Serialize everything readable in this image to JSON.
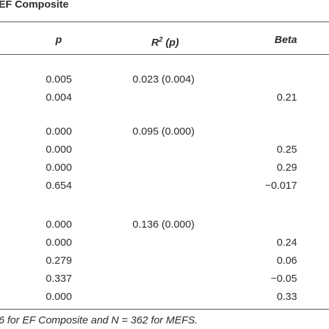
{
  "title": "EF Composite",
  "header": {
    "p": "p",
    "r2": {
      "base": "R",
      "sup": "2",
      "rest": " (p)"
    },
    "beta": "Beta"
  },
  "groups": [
    {
      "rows": [
        {
          "p": "0.005",
          "r2": "0.023 (0.004)",
          "beta": null
        },
        {
          "p": "0.004",
          "r2": null,
          "beta": "0.21"
        }
      ]
    },
    {
      "rows": [
        {
          "p": "0.000",
          "r2": "0.095 (0.000)",
          "beta": null
        },
        {
          "p": "0.000",
          "r2": null,
          "beta": "0.25"
        },
        {
          "p": "0.000",
          "r2": null,
          "beta": "0.29"
        },
        {
          "p": "0.654",
          "r2": null,
          "beta": "−0.017"
        }
      ]
    },
    {
      "rows": [
        {
          "p": "0.000",
          "r2": "0.136 (0.000)",
          "beta": null
        },
        {
          "p": "0.000",
          "r2": null,
          "beta": "0.24"
        },
        {
          "p": "0.279",
          "r2": null,
          "beta": "0.06"
        },
        {
          "p": "0.337",
          "r2": null,
          "beta": "−0.05"
        },
        {
          "p": "0.000",
          "r2": null,
          "beta": "0.33"
        }
      ]
    }
  ],
  "footnote": "6 for EF Composite and N = 362 for MEFS."
}
